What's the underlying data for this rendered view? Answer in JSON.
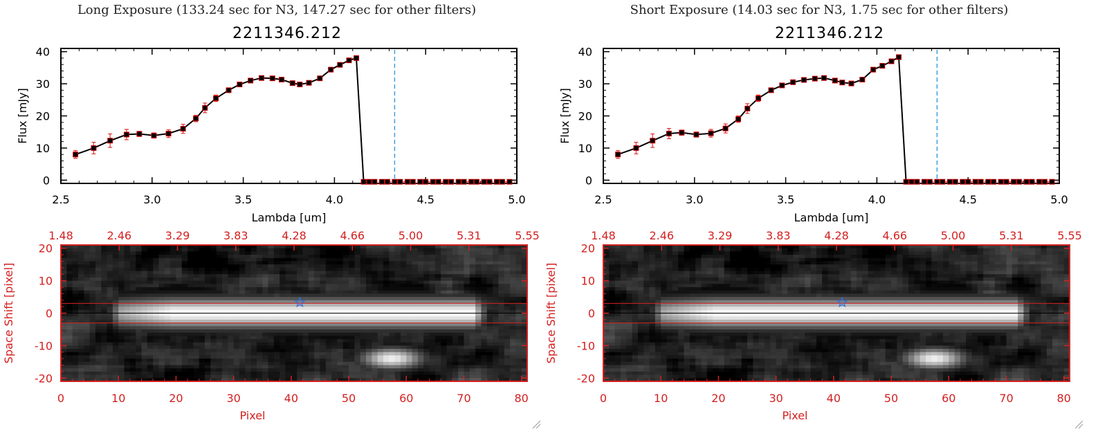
{
  "object_id": "2211346.212",
  "colors": {
    "spectrum_line": "#000000",
    "marker_fill": "#000000",
    "marker_edge": "#cc0000",
    "error_bar": "#e03030",
    "zero_dash": "#cc0000",
    "vline": "#3ba0e0",
    "image_axes": "#d42020",
    "star": "#2f6fe0",
    "aperture": "#d42020"
  },
  "panels": [
    {
      "id": "long",
      "exposure_title": "Long Exposure (133.24 sec for N3, 147.27 sec for other filters)",
      "object_title": "2211346.212"
    },
    {
      "id": "short",
      "exposure_title": "Short Exposure (14.03 sec for N3, 1.75 sec for other filters)",
      "object_title": "2211346.212"
    }
  ],
  "chart_data": [
    {
      "type": "line",
      "title": "2211346.212",
      "xlabel": "Lambda [um]",
      "ylabel": "Flux [mJy]",
      "xlim": [
        2.5,
        5.0
      ],
      "ylim": [
        -1,
        41
      ],
      "xticks": [
        2.5,
        3.0,
        3.5,
        4.0,
        4.5,
        5.0
      ],
      "xtick_labels": [
        "2.5",
        "3.0",
        "3.5",
        "4.0",
        "4.5",
        "5.0"
      ],
      "yticks": [
        0,
        10,
        20,
        30,
        40
      ],
      "ytick_labels": [
        "0",
        "10",
        "20",
        "30",
        "40"
      ],
      "vline_x": 4.33,
      "series": [
        {
          "name": "flux",
          "x": [
            2.58,
            2.68,
            2.77,
            2.86,
            2.93,
            3.01,
            3.09,
            3.17,
            3.24,
            3.29,
            3.35,
            3.42,
            3.48,
            3.54,
            3.6,
            3.66,
            3.71,
            3.77,
            3.81,
            3.86,
            3.92,
            3.98,
            4.03,
            4.08,
            4.12,
            4.16
          ],
          "y": [
            8.0,
            10.0,
            12.3,
            14.2,
            14.4,
            13.9,
            14.5,
            16.0,
            19.2,
            22.5,
            25.5,
            28.0,
            29.8,
            31.0,
            31.8,
            31.7,
            31.3,
            30.2,
            29.8,
            30.3,
            31.7,
            34.4,
            35.9,
            37.3,
            38.0,
            -0.5
          ],
          "yerr": [
            1.2,
            1.8,
            2.1,
            1.6,
            0.8,
            0.8,
            1.2,
            1.4,
            1.0,
            1.5,
            1.0,
            0.6,
            0.6,
            0.5,
            0.5,
            0.5,
            0.5,
            0.5,
            0.5,
            0.6,
            0.6,
            0.6,
            0.6,
            0.6,
            0.6,
            0.3
          ]
        },
        {
          "name": "no-data",
          "x": [
            4.19,
            4.22,
            4.26,
            4.29,
            4.33,
            4.36,
            4.4,
            4.43,
            4.47,
            4.5,
            4.54,
            4.57,
            4.61,
            4.64,
            4.68,
            4.71,
            4.75,
            4.78,
            4.82,
            4.85,
            4.89,
            4.92,
            4.96
          ],
          "y": [
            -0.5,
            -0.5,
            -0.5,
            -0.5,
            -0.5,
            -0.5,
            -0.5,
            -0.5,
            -0.5,
            -0.5,
            -0.5,
            -0.5,
            -0.5,
            -0.5,
            -0.5,
            -0.5,
            -0.5,
            -0.5,
            -0.5,
            -0.5,
            -0.5,
            -0.5,
            -0.5
          ]
        }
      ]
    },
    {
      "type": "line",
      "title": "2211346.212",
      "xlabel": "Lambda [um]",
      "ylabel": "Flux [mJy]",
      "xlim": [
        2.5,
        5.0
      ],
      "ylim": [
        -1,
        41
      ],
      "xticks": [
        2.5,
        3.0,
        3.5,
        4.0,
        4.5,
        5.0
      ],
      "xtick_labels": [
        "2.5",
        "3.0",
        "3.5",
        "4.0",
        "4.5",
        "5.0"
      ],
      "yticks": [
        0,
        10,
        20,
        30,
        40
      ],
      "ytick_labels": [
        "0",
        "10",
        "20",
        "30",
        "40"
      ],
      "vline_x": 4.33,
      "series": [
        {
          "name": "flux",
          "x": [
            2.58,
            2.68,
            2.77,
            2.86,
            2.93,
            3.01,
            3.09,
            3.17,
            3.24,
            3.29,
            3.35,
            3.42,
            3.48,
            3.54,
            3.6,
            3.66,
            3.71,
            3.77,
            3.81,
            3.86,
            3.92,
            3.98,
            4.03,
            4.08,
            4.12,
            4.16
          ],
          "y": [
            8.0,
            10.0,
            12.3,
            14.5,
            14.8,
            14.2,
            14.6,
            16.1,
            19.0,
            22.3,
            25.5,
            28.0,
            29.5,
            30.5,
            31.2,
            31.6,
            31.8,
            31.0,
            30.4,
            30.1,
            31.3,
            34.4,
            35.6,
            37.0,
            38.3,
            -0.5
          ],
          "yerr": [
            1.2,
            1.8,
            2.1,
            1.6,
            0.8,
            0.8,
            1.2,
            1.4,
            1.0,
            1.5,
            1.0,
            0.6,
            0.6,
            0.5,
            0.5,
            0.5,
            0.5,
            0.5,
            0.5,
            0.6,
            0.6,
            0.6,
            0.6,
            0.6,
            0.6,
            0.3
          ]
        },
        {
          "name": "no-data",
          "x": [
            4.19,
            4.22,
            4.26,
            4.29,
            4.33,
            4.36,
            4.4,
            4.43,
            4.47,
            4.5,
            4.54,
            4.57,
            4.61,
            4.64,
            4.68,
            4.71,
            4.75,
            4.78,
            4.82,
            4.85,
            4.89,
            4.92,
            4.96
          ],
          "y": [
            -0.5,
            -0.5,
            -0.5,
            -0.5,
            -0.5,
            -0.5,
            -0.5,
            -0.5,
            -0.5,
            -0.5,
            -0.5,
            -0.5,
            -0.5,
            -0.5,
            -0.5,
            -0.5,
            -0.5,
            -0.5,
            -0.5,
            -0.5,
            -0.5,
            -0.5,
            -0.5
          ]
        }
      ]
    },
    {
      "type": "heatmap",
      "xlabel": "Pixel",
      "ylabel": "Space Shift [pixel]",
      "xlim": [
        0,
        81
      ],
      "ylim": [
        -21,
        21
      ],
      "xticks": [
        0,
        10,
        20,
        30,
        40,
        50,
        60,
        70,
        80
      ],
      "xtick_labels": [
        "0",
        "10",
        "20",
        "30",
        "40",
        "50",
        "60",
        "70",
        "80"
      ],
      "yticks": [
        -20,
        -10,
        0,
        10,
        20
      ],
      "ytick_labels": [
        "-20",
        "-10",
        "0",
        "10",
        "20"
      ],
      "top_axis_labels": [
        "1.48",
        "2.46",
        "3.29",
        "3.83",
        "4.28",
        "4.66",
        "5.00",
        "5.31",
        "5.55"
      ],
      "aperture_y": [
        -3,
        3
      ],
      "star": {
        "x": 41.5,
        "y": 3.3
      },
      "bright_trace_x": [
        7,
        74
      ],
      "seed": 17
    },
    {
      "type": "heatmap",
      "xlabel": "Pixel",
      "ylabel": "Space Shift [pixel]",
      "xlim": [
        0,
        81
      ],
      "ylim": [
        -21,
        21
      ],
      "xticks": [
        0,
        10,
        20,
        30,
        40,
        50,
        60,
        70,
        80
      ],
      "xtick_labels": [
        "0",
        "10",
        "20",
        "30",
        "40",
        "50",
        "60",
        "70",
        "80"
      ],
      "yticks": [
        -20,
        -10,
        0,
        10,
        20
      ],
      "ytick_labels": [
        "-20",
        "-10",
        "0",
        "10",
        "20"
      ],
      "top_axis_labels": [
        "1.48",
        "2.46",
        "3.29",
        "3.83",
        "4.28",
        "4.66",
        "5.00",
        "5.31",
        "5.55"
      ],
      "aperture_y": [
        -3,
        3
      ],
      "star": {
        "x": 41.5,
        "y": 3.3
      },
      "bright_trace_x": [
        7,
        74
      ],
      "seed": 17
    }
  ]
}
